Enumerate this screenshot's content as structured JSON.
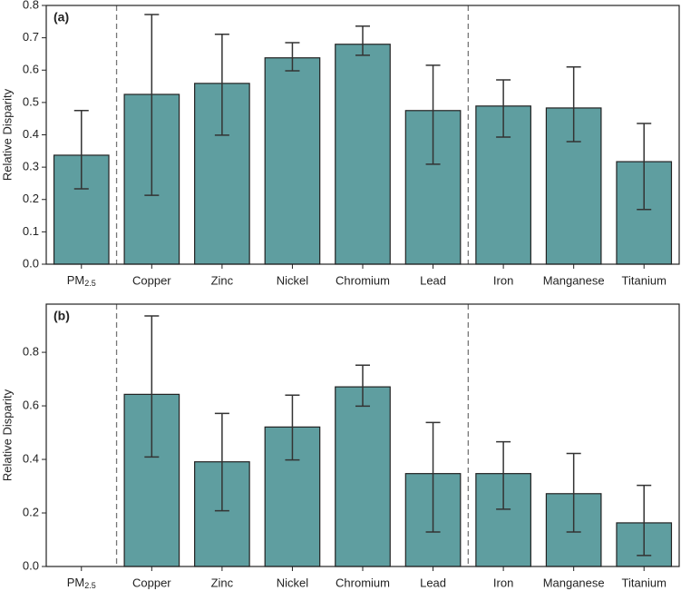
{
  "chart_data": [
    {
      "type": "bar",
      "title": "(a)",
      "ylabel": "Relative Disparity",
      "color": "#5f9ea0",
      "categories": [
        "PM2.5",
        "Copper",
        "Zinc",
        "Nickel",
        "Chromium",
        "Lead",
        "Iron",
        "Manganese",
        "Titanium"
      ],
      "values": [
        0.337,
        0.525,
        0.559,
        0.638,
        0.68,
        0.475,
        0.489,
        0.483,
        0.317
      ],
      "lower": [
        0.233,
        0.213,
        0.399,
        0.598,
        0.646,
        0.309,
        0.393,
        0.379,
        0.169
      ],
      "upper": [
        0.475,
        0.772,
        0.711,
        0.685,
        0.736,
        0.615,
        0.57,
        0.61,
        0.435
      ],
      "ylim": [
        0,
        0.8
      ],
      "yticks": [
        {
          "value": 0,
          "label": "0.0"
        },
        0.1,
        0.2,
        0.3,
        0.4,
        0.5,
        0.6,
        0.7,
        0.8
      ]
    },
    {
      "type": "bar",
      "title": "(b)",
      "ylabel": "Relative Disparity",
      "color": "#5f9ea0",
      "categories": [
        "PM2.5",
        "Copper",
        "Zinc",
        "Nickel",
        "Chromium",
        "Lead",
        "Iron",
        "Manganese",
        "Titanium"
      ],
      "values": [
        null,
        0.643,
        0.391,
        0.521,
        0.671,
        0.347,
        0.347,
        0.272,
        0.163
      ],
      "lower": [
        null,
        0.409,
        0.208,
        0.398,
        0.599,
        0.129,
        0.214,
        0.129,
        0.041
      ],
      "upper": [
        null,
        0.936,
        0.572,
        0.64,
        0.752,
        0.538,
        0.466,
        0.422,
        0.303
      ],
      "ylim": [
        0,
        0.98
      ],
      "yticks": [
        {
          "value": 0,
          "label": "0.0"
        },
        0.2,
        0.4,
        0.6,
        0.8
      ]
    }
  ]
}
